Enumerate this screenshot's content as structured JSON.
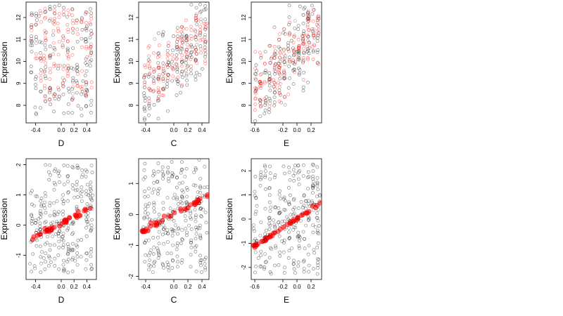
{
  "figure": {
    "layout": "2x3 grid of scatter plots"
  },
  "colors": {
    "observed": "#000000",
    "fitted": "#ff0000",
    "frame": "#000000"
  },
  "chart_data": [
    {
      "type": "scatter",
      "row": 0,
      "col": 0,
      "xlabel": "D",
      "ylabel": "Expression",
      "xlim": [
        -0.55,
        0.55
      ],
      "ylim": [
        7.2,
        12.7
      ],
      "xticks": [
        -0.4,
        0,
        0.2,
        0.4
      ],
      "xtick_labels": [
        "-0.4",
        "0.0",
        "0.2",
        "0.4"
      ],
      "yticks": [
        8,
        9,
        10,
        11,
        12
      ],
      "ytick_labels": [
        "8",
        "9",
        "10",
        "11",
        "12"
      ],
      "series": [
        {
          "style": "open-circle",
          "color": "#000000",
          "x_range": [
            -0.5,
            0.5
          ],
          "y_range": [
            7.4,
            12.6
          ],
          "density": 160,
          "trend": "scattered flat"
        },
        {
          "style": "open-circle",
          "color": "#ff0000",
          "x_range": [
            -0.5,
            0.5
          ],
          "y_range": [
            8.2,
            12.4
          ],
          "density": 140,
          "trend": "scattered flat"
        }
      ]
    },
    {
      "type": "scatter",
      "row": 0,
      "col": 1,
      "xlabel": "C",
      "ylabel": "Expression",
      "xlim": [
        -0.5,
        0.5
      ],
      "ylim": [
        7.2,
        12.7
      ],
      "xticks": [
        -0.4,
        0,
        0.2,
        0.4
      ],
      "xtick_labels": [
        "-0.4",
        "0.0",
        "0.2",
        "0.4"
      ],
      "yticks": [
        8,
        9,
        10,
        11,
        12
      ],
      "ytick_labels": [
        "8",
        "9",
        "10",
        "11",
        "12"
      ],
      "series": [
        {
          "style": "open-circle",
          "color": "#000000",
          "x_range": [
            -0.45,
            0.48
          ],
          "y_range": [
            7.5,
            12.5
          ],
          "density": 160,
          "trend": "increasing, clustered columns"
        },
        {
          "style": "open-circle",
          "color": "#ff0000",
          "x_range": [
            -0.45,
            0.48
          ],
          "y_range": [
            8.5,
            12.3
          ],
          "density": 140,
          "trend": "increasing, clustered columns"
        }
      ]
    },
    {
      "type": "scatter",
      "row": 0,
      "col": 2,
      "xlabel": "E",
      "ylabel": "Expression",
      "xlim": [
        -0.65,
        0.35
      ],
      "ylim": [
        7.2,
        12.7
      ],
      "xticks": [
        -0.6,
        -0.2,
        0,
        0.2
      ],
      "xtick_labels": [
        "-0.6",
        "-0.2",
        "0.0",
        "0.2"
      ],
      "yticks": [
        8,
        9,
        10,
        11,
        12
      ],
      "ytick_labels": [
        "8",
        "9",
        "10",
        "11",
        "12"
      ],
      "series": [
        {
          "style": "open-circle",
          "color": "#000000",
          "x_range": [
            -0.62,
            0.33
          ],
          "y_range": [
            7.6,
            12.6
          ],
          "density": 170,
          "trend": "increasing, dense column at right edge"
        },
        {
          "style": "open-circle",
          "color": "#ff0000",
          "x_range": [
            -0.62,
            0.33
          ],
          "y_range": [
            8.2,
            12.4
          ],
          "density": 160,
          "trend": "increasing, dense column at right edge"
        }
      ]
    },
    {
      "type": "scatter",
      "row": 1,
      "col": 0,
      "xlabel": "D",
      "ylabel": "Expression",
      "xlim": [
        -0.55,
        0.55
      ],
      "ylim": [
        -1.8,
        2.2
      ],
      "xticks": [
        -0.4,
        0,
        0.2,
        0.4
      ],
      "xtick_labels": [
        "-0.4",
        "0.0",
        "0.2",
        "0.4"
      ],
      "yticks": [
        -1,
        0,
        1,
        2
      ],
      "ytick_labels": [
        "-1",
        "0",
        "1",
        "2"
      ],
      "series": [
        {
          "style": "open-circle",
          "color": "#000000",
          "x_range": [
            -0.5,
            0.5
          ],
          "y_range": [
            -1.6,
            2.0
          ],
          "density": 200,
          "trend": "scattered around fit"
        },
        {
          "style": "filled-circle",
          "color": "#ff0000",
          "x_range": [
            -0.5,
            0.5
          ],
          "fit": [
            [
              -0.5,
              -0.5
            ],
            [
              0.5,
              0.6
            ]
          ],
          "density": 40,
          "trend": "linear fit"
        }
      ]
    },
    {
      "type": "scatter",
      "row": 1,
      "col": 1,
      "xlabel": "C",
      "ylabel": "Expression",
      "xlim": [
        -0.5,
        0.5
      ],
      "ylim": [
        -2.1,
        1.8
      ],
      "xticks": [
        -0.4,
        0,
        0.2,
        0.4
      ],
      "xtick_labels": [
        "-0.4",
        "0.0",
        "0.2",
        "0.4"
      ],
      "yticks": [
        -2,
        -1,
        0,
        1
      ],
      "ytick_labels": [
        "-2",
        "-1",
        "0",
        "1"
      ],
      "series": [
        {
          "style": "open-circle",
          "color": "#000000",
          "x_range": [
            -0.45,
            0.48
          ],
          "y_range": [
            -1.9,
            1.7
          ],
          "density": 200,
          "trend": "scattered around fit"
        },
        {
          "style": "filled-circle",
          "color": "#ff0000",
          "x_range": [
            -0.45,
            0.48
          ],
          "fit": [
            [
              -0.45,
              -0.55
            ],
            [
              0.48,
              0.6
            ]
          ],
          "density": 40,
          "trend": "linear fit"
        }
      ]
    },
    {
      "type": "scatter",
      "row": 1,
      "col": 2,
      "xlabel": "E",
      "ylabel": "Expression",
      "xlim": [
        -0.65,
        0.35
      ],
      "ylim": [
        -2.5,
        2.5
      ],
      "xticks": [
        -0.6,
        -0.2,
        0,
        0.2
      ],
      "xtick_labels": [
        "-0.6",
        "-0.2",
        "0.0",
        "0.2"
      ],
      "yticks": [
        -2,
        -1,
        0,
        1,
        2
      ],
      "ytick_labels": [
        "-2",
        "-1",
        "0",
        "1",
        "2"
      ],
      "series": [
        {
          "style": "open-circle",
          "color": "#000000",
          "x_range": [
            -0.62,
            0.33
          ],
          "y_range": [
            -2.3,
            2.3
          ],
          "density": 210,
          "trend": "scattered around fit, dense column at right edge"
        },
        {
          "style": "filled-circle",
          "color": "#ff0000",
          "x_range": [
            -0.62,
            0.33
          ],
          "fit": [
            [
              -0.62,
              -1.15
            ],
            [
              0.33,
              0.65
            ]
          ],
          "density": 45,
          "trend": "linear fit"
        }
      ]
    }
  ]
}
